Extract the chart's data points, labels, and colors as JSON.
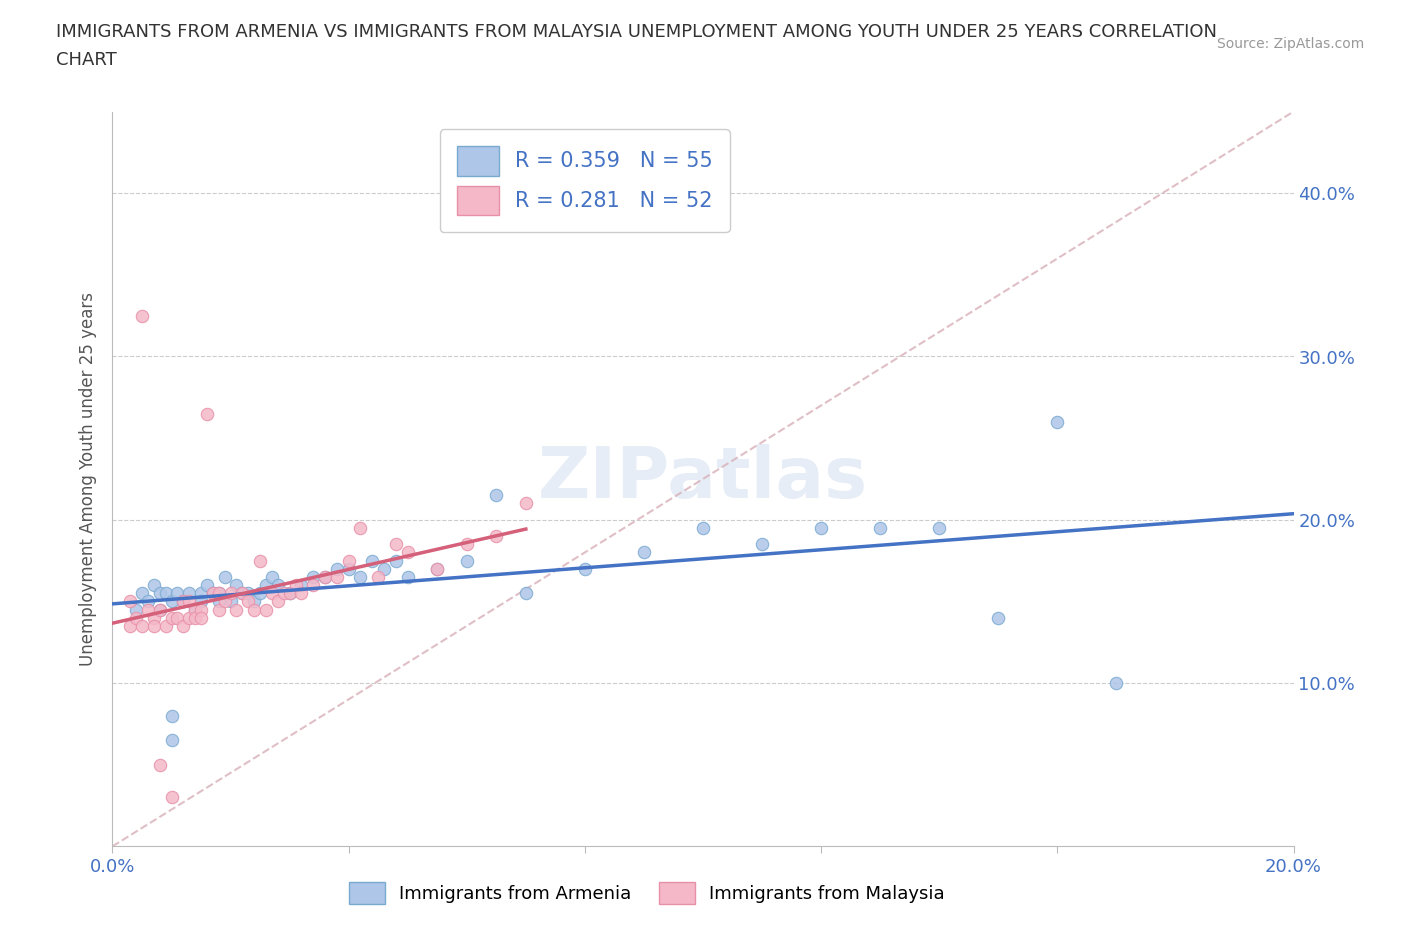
{
  "title_line1": "IMMIGRANTS FROM ARMENIA VS IMMIGRANTS FROM MALAYSIA UNEMPLOYMENT AMONG YOUTH UNDER 25 YEARS CORRELATION",
  "title_line2": "CHART",
  "source": "Source: ZipAtlas.com",
  "ylabel": "Unemployment Among Youth under 25 years",
  "xlim": [
    0.0,
    0.2
  ],
  "ylim": [
    0.0,
    0.45
  ],
  "x_ticks": [
    0.0,
    0.04,
    0.08,
    0.12,
    0.16,
    0.2
  ],
  "y_ticks": [
    0.0,
    0.1,
    0.2,
    0.3,
    0.4
  ],
  "armenia_color": "#aec6e8",
  "malaysia_color": "#f4b8c8",
  "armenia_edge_color": "#7aaad0",
  "malaysia_edge_color": "#e890a8",
  "armenia_line_color": "#4472c4",
  "malaysia_line_color": "#d4607a",
  "diagonal_color": "#d8b0b8",
  "R_armenia": 0.359,
  "N_armenia": 55,
  "R_malaysia": 0.281,
  "N_malaysia": 52,
  "watermark": "ZIPatlas",
  "armenia_scatter_x": [
    0.004,
    0.005,
    0.006,
    0.007,
    0.008,
    0.008,
    0.009,
    0.01,
    0.01,
    0.011,
    0.012,
    0.013,
    0.014,
    0.015,
    0.015,
    0.016,
    0.017,
    0.018,
    0.019,
    0.02,
    0.021,
    0.022,
    0.023,
    0.024,
    0.025,
    0.026,
    0.027,
    0.028,
    0.03,
    0.032,
    0.034,
    0.036,
    0.038,
    0.04,
    0.042,
    0.044,
    0.046,
    0.048,
    0.05,
    0.055,
    0.06,
    0.065,
    0.07,
    0.08,
    0.09,
    0.1,
    0.11,
    0.12,
    0.13,
    0.14,
    0.15,
    0.16,
    0.17,
    0.01,
    0.018
  ],
  "armenia_scatter_y": [
    0.145,
    0.155,
    0.15,
    0.16,
    0.155,
    0.145,
    0.155,
    0.15,
    0.065,
    0.155,
    0.15,
    0.155,
    0.145,
    0.155,
    0.15,
    0.16,
    0.155,
    0.155,
    0.165,
    0.15,
    0.16,
    0.155,
    0.155,
    0.15,
    0.155,
    0.16,
    0.165,
    0.16,
    0.155,
    0.16,
    0.165,
    0.165,
    0.17,
    0.17,
    0.165,
    0.175,
    0.17,
    0.175,
    0.165,
    0.17,
    0.175,
    0.215,
    0.155,
    0.17,
    0.18,
    0.195,
    0.185,
    0.195,
    0.195,
    0.195,
    0.14,
    0.26,
    0.1,
    0.08,
    0.15
  ],
  "malaysia_scatter_x": [
    0.003,
    0.004,
    0.005,
    0.005,
    0.006,
    0.007,
    0.007,
    0.008,
    0.008,
    0.009,
    0.01,
    0.01,
    0.011,
    0.012,
    0.012,
    0.013,
    0.013,
    0.014,
    0.014,
    0.015,
    0.015,
    0.016,
    0.017,
    0.018,
    0.018,
    0.019,
    0.02,
    0.021,
    0.022,
    0.023,
    0.024,
    0.025,
    0.026,
    0.027,
    0.028,
    0.029,
    0.03,
    0.031,
    0.032,
    0.034,
    0.036,
    0.038,
    0.04,
    0.042,
    0.045,
    0.048,
    0.05,
    0.055,
    0.06,
    0.065,
    0.07,
    0.003
  ],
  "malaysia_scatter_y": [
    0.135,
    0.14,
    0.325,
    0.135,
    0.145,
    0.14,
    0.135,
    0.145,
    0.05,
    0.135,
    0.14,
    0.03,
    0.14,
    0.15,
    0.135,
    0.15,
    0.14,
    0.145,
    0.14,
    0.145,
    0.14,
    0.265,
    0.155,
    0.155,
    0.145,
    0.15,
    0.155,
    0.145,
    0.155,
    0.15,
    0.145,
    0.175,
    0.145,
    0.155,
    0.15,
    0.155,
    0.155,
    0.16,
    0.155,
    0.16,
    0.165,
    0.165,
    0.175,
    0.195,
    0.165,
    0.185,
    0.18,
    0.17,
    0.185,
    0.19,
    0.21,
    0.15
  ]
}
